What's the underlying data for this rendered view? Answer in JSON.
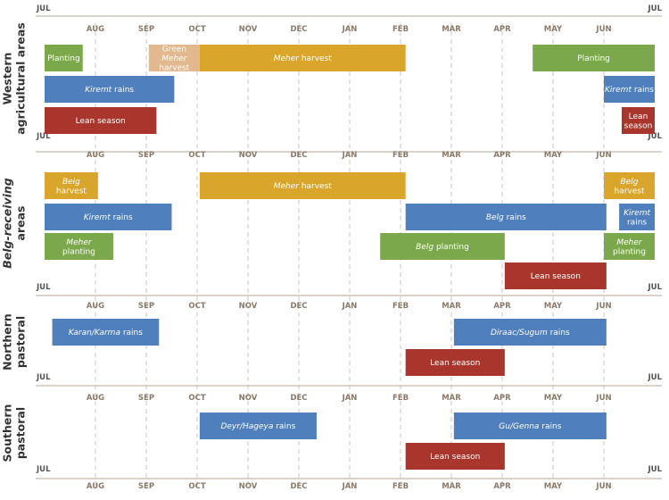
{
  "chart_data": {
    "type": "timeline",
    "title": "",
    "x_unit": "month index (0 = start of JUL, 12 = end of following JUN)",
    "months": [
      "AUG",
      "SEP",
      "OCT",
      "NOV",
      "DEC",
      "JAN",
      "FEB",
      "MAR",
      "APR",
      "MAY",
      "JUN"
    ],
    "corner_labels": {
      "start": "JUL",
      "end": "JUL"
    },
    "colors": {
      "planting": "#7ba84a",
      "harvest": "#d9a52b",
      "rains": "#4f7fbd",
      "lean": "#a8362c",
      "green_harvest": "#e2b88f"
    },
    "panels": [
      {
        "id": "western",
        "label_lines": [
          "Western",
          "agricultural areas"
        ],
        "label_italic": false,
        "bars": [
          {
            "row": 0,
            "start": 0.0,
            "end": 0.75,
            "color": "planting",
            "lines": [
              [
                {
                  "t": "Planting",
                  "i": false
                }
              ]
            ]
          },
          {
            "row": 0,
            "start": 2.05,
            "end": 3.05,
            "color": "green_harvest",
            "lines": [
              [
                {
                  "t": "Green",
                  "i": false
                }
              ],
              [
                {
                  "t": "Meher",
                  "i": true
                }
              ],
              [
                {
                  "t": "harvest",
                  "i": false
                }
              ]
            ]
          },
          {
            "row": 0,
            "start": 3.05,
            "end": 7.1,
            "color": "harvest",
            "lines": [
              [
                {
                  "t": "Meher",
                  "i": true
                },
                {
                  "t": " harvest",
                  "i": false
                }
              ]
            ]
          },
          {
            "row": 0,
            "start": 9.6,
            "end": 12.0,
            "color": "planting",
            "lines": [
              [
                {
                  "t": "Planting",
                  "i": false
                }
              ]
            ]
          },
          {
            "row": 1,
            "start": 0.0,
            "end": 2.55,
            "color": "rains",
            "lines": [
              [
                {
                  "t": "Kiremt",
                  "i": true
                },
                {
                  "t": " rains",
                  "i": false
                }
              ]
            ]
          },
          {
            "row": 1,
            "start": 11.0,
            "end": 12.0,
            "color": "rains",
            "lines": [
              [
                {
                  "t": "Kiremt",
                  "i": true
                },
                {
                  "t": " rains",
                  "i": false
                }
              ]
            ]
          },
          {
            "row": 2,
            "start": 0.0,
            "end": 2.2,
            "color": "lean",
            "lines": [
              [
                {
                  "t": "Lean season",
                  "i": false
                }
              ]
            ]
          },
          {
            "row": 2,
            "start": 11.35,
            "end": 12.0,
            "color": "lean",
            "lines": [
              [
                {
                  "t": "Lean",
                  "i": false
                }
              ],
              [
                {
                  "t": "season",
                  "i": false
                }
              ]
            ]
          }
        ]
      },
      {
        "id": "belg",
        "label_lines": [
          "Belg-receiving",
          "areas"
        ],
        "label_italic": true,
        "bars": [
          {
            "row": 0,
            "start": 0.0,
            "end": 1.05,
            "color": "harvest",
            "lines": [
              [
                {
                  "t": "Belg",
                  "i": true
                }
              ],
              [
                {
                  "t": "harvest",
                  "i": false
                }
              ]
            ]
          },
          {
            "row": 0,
            "start": 3.05,
            "end": 7.1,
            "color": "harvest",
            "lines": [
              [
                {
                  "t": "Meher",
                  "i": true
                },
                {
                  "t": " harvest",
                  "i": false
                }
              ]
            ]
          },
          {
            "row": 0,
            "start": 11.0,
            "end": 12.0,
            "color": "harvest",
            "lines": [
              [
                {
                  "t": "Belg",
                  "i": true
                }
              ],
              [
                {
                  "t": "harvest",
                  "i": false
                }
              ]
            ]
          },
          {
            "row": 1,
            "start": 0.0,
            "end": 2.5,
            "color": "rains",
            "lines": [
              [
                {
                  "t": "Kiremt",
                  "i": true
                },
                {
                  "t": " rains",
                  "i": false
                }
              ]
            ]
          },
          {
            "row": 1,
            "start": 7.1,
            "end": 11.05,
            "color": "rains",
            "lines": [
              [
                {
                  "t": "Belg",
                  "i": true
                },
                {
                  "t": " rains",
                  "i": false
                }
              ]
            ]
          },
          {
            "row": 1,
            "start": 11.3,
            "end": 12.0,
            "color": "rains",
            "lines": [
              [
                {
                  "t": "Kiremt",
                  "i": true
                }
              ],
              [
                {
                  "t": "rains",
                  "i": false
                }
              ]
            ]
          },
          {
            "row": 2,
            "start": 0.0,
            "end": 1.35,
            "color": "planting",
            "lines": [
              [
                {
                  "t": "Meher",
                  "i": true
                }
              ],
              [
                {
                  "t": "planting",
                  "i": false
                }
              ]
            ]
          },
          {
            "row": 2,
            "start": 6.6,
            "end": 9.05,
            "color": "planting",
            "lines": [
              [
                {
                  "t": "Belg",
                  "i": true
                },
                {
                  "t": " planting",
                  "i": false
                }
              ]
            ]
          },
          {
            "row": 2,
            "start": 11.0,
            "end": 12.0,
            "color": "planting",
            "lines": [
              [
                {
                  "t": "Meher",
                  "i": true
                }
              ],
              [
                {
                  "t": "planting",
                  "i": false
                }
              ]
            ]
          },
          {
            "row": 3,
            "start": 9.05,
            "end": 11.05,
            "color": "lean",
            "lines": [
              [
                {
                  "t": "Lean season",
                  "i": false
                }
              ]
            ]
          }
        ]
      },
      {
        "id": "northern",
        "label_lines": [
          "Northern",
          "pastoral"
        ],
        "label_italic": false,
        "bars": [
          {
            "row": 0,
            "start": 0.15,
            "end": 2.25,
            "color": "rains",
            "lines": [
              [
                {
                  "t": "Karan/Karma",
                  "i": true
                },
                {
                  "t": " rains",
                  "i": false
                }
              ]
            ]
          },
          {
            "row": 0,
            "start": 8.05,
            "end": 11.05,
            "color": "rains",
            "lines": [
              [
                {
                  "t": "Diraac/Sugum",
                  "i": true
                },
                {
                  "t": " rains",
                  "i": false
                }
              ]
            ]
          },
          {
            "row": 1,
            "start": 7.1,
            "end": 9.05,
            "color": "lean",
            "lines": [
              [
                {
                  "t": "Lean season",
                  "i": false
                }
              ]
            ]
          }
        ]
      },
      {
        "id": "southern",
        "label_lines": [
          "Southern",
          "pastoral"
        ],
        "label_italic": false,
        "bars": [
          {
            "row": 0,
            "start": 3.05,
            "end": 5.35,
            "color": "rains",
            "lines": [
              [
                {
                  "t": "Deyr/Hageya",
                  "i": true
                },
                {
                  "t": " rains",
                  "i": false
                }
              ]
            ]
          },
          {
            "row": 0,
            "start": 8.05,
            "end": 11.05,
            "color": "rains",
            "lines": [
              [
                {
                  "t": "Gu/Genna",
                  "i": true
                },
                {
                  "t": " rains",
                  "i": false
                }
              ]
            ]
          },
          {
            "row": 1,
            "start": 7.1,
            "end": 9.05,
            "color": "lean",
            "lines": [
              [
                {
                  "t": "Lean season",
                  "i": false
                }
              ]
            ]
          }
        ]
      }
    ]
  }
}
